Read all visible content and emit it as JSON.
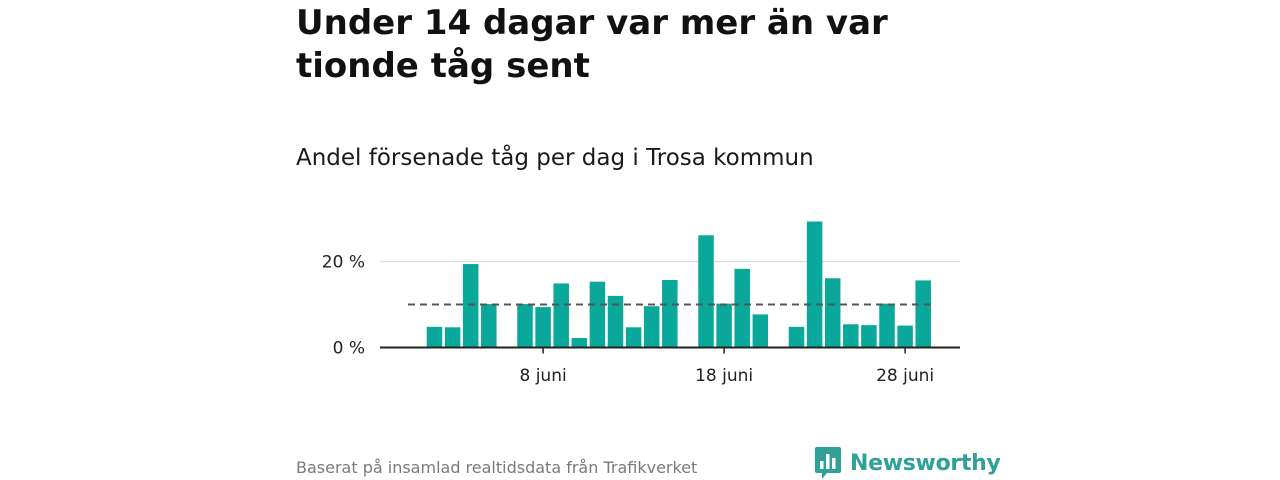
{
  "header": {
    "title": "Under 14 dagar var mer än var tionde tåg sent",
    "subtitle": "Andel försenade tåg per dag i Trosa kommun"
  },
  "footer": {
    "source": "Baserat på insamlad realtidsdata från Trafikverket",
    "brand": "Newsworthy"
  },
  "colors": {
    "bar": "#0aa89a",
    "reference_line": "#555555",
    "gridline": "#dddddd",
    "axis": "#222222",
    "brand": "#30a196"
  },
  "icons": {
    "brand_logo": "newsworthy-logo-icon"
  },
  "chart_data": {
    "type": "bar",
    "x_unit": "day of june",
    "x": [
      1,
      2,
      3,
      4,
      5,
      6,
      7,
      8,
      9,
      10,
      11,
      12,
      13,
      14,
      15,
      16,
      17,
      18,
      19,
      20,
      21,
      22,
      23,
      24,
      25,
      26,
      27,
      28,
      29,
      30
    ],
    "values": [
      null,
      4.8,
      4.7,
      19.4,
      10.1,
      null,
      10.1,
      9.4,
      14.9,
      2.2,
      15.3,
      12.0,
      4.7,
      9.6,
      15.7,
      null,
      26.1,
      10.2,
      18.3,
      7.7,
      null,
      4.8,
      29.3,
      16.1,
      5.4,
      5.2,
      10.2,
      5.1,
      15.6,
      null
    ],
    "reference_line": {
      "value": 10,
      "style": "dashed"
    },
    "x_ticks": [
      {
        "x": 8,
        "label": "8 juni"
      },
      {
        "x": 18,
        "label": "18 juni"
      },
      {
        "x": 28,
        "label": "28 juni"
      }
    ],
    "y_ticks": [
      {
        "value": 0,
        "label": "0 %"
      },
      {
        "value": 20,
        "label": "20 %"
      }
    ],
    "ylim": [
      0,
      30
    ],
    "grid": true,
    "legend": "none"
  }
}
